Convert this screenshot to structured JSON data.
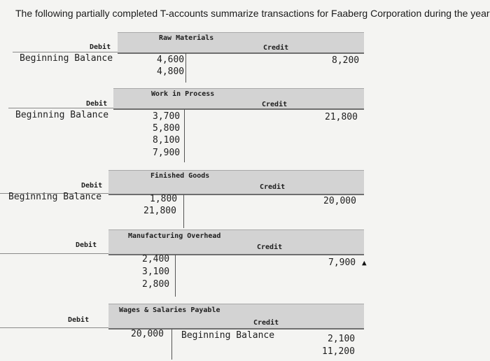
{
  "intro": "The following partially completed T-accounts summarize transactions for Faaberg Corporation during the year:",
  "accounts": [
    {
      "title": "Raw Materials",
      "debit_label": "Debit",
      "credit_label": "Credit",
      "beginning_label": "Beginning Balance",
      "debits": [
        "4,600",
        "4,800"
      ],
      "credits": [
        "8,200"
      ]
    },
    {
      "title": "Work in Process",
      "debit_label": "Debit",
      "credit_label": "Credit",
      "beginning_label": "Beginning Balance",
      "debits": [
        "3,700",
        "5,800",
        "8,100",
        "7,900"
      ],
      "credits": [
        "21,800"
      ]
    },
    {
      "title": "Finished Goods",
      "debit_label": "Debit",
      "credit_label": "Credit",
      "beginning_label": "Beginning Balance",
      "debits": [
        "1,800",
        "21,800"
      ],
      "credits": [
        "20,000"
      ]
    },
    {
      "title": "Manufacturing Overhead",
      "debit_label": "Debit",
      "credit_label": "Credit",
      "debits": [
        "2,400",
        "3,100",
        "2,800"
      ],
      "credits": [
        "7,900"
      ]
    },
    {
      "title": "Wages & Salaries Payable",
      "debit_label": "Debit",
      "credit_label": "Credit",
      "beginning_label": "Beginning Balance",
      "debits": [
        "20,000"
      ],
      "credits": [
        "2,100",
        "11,200"
      ]
    }
  ]
}
